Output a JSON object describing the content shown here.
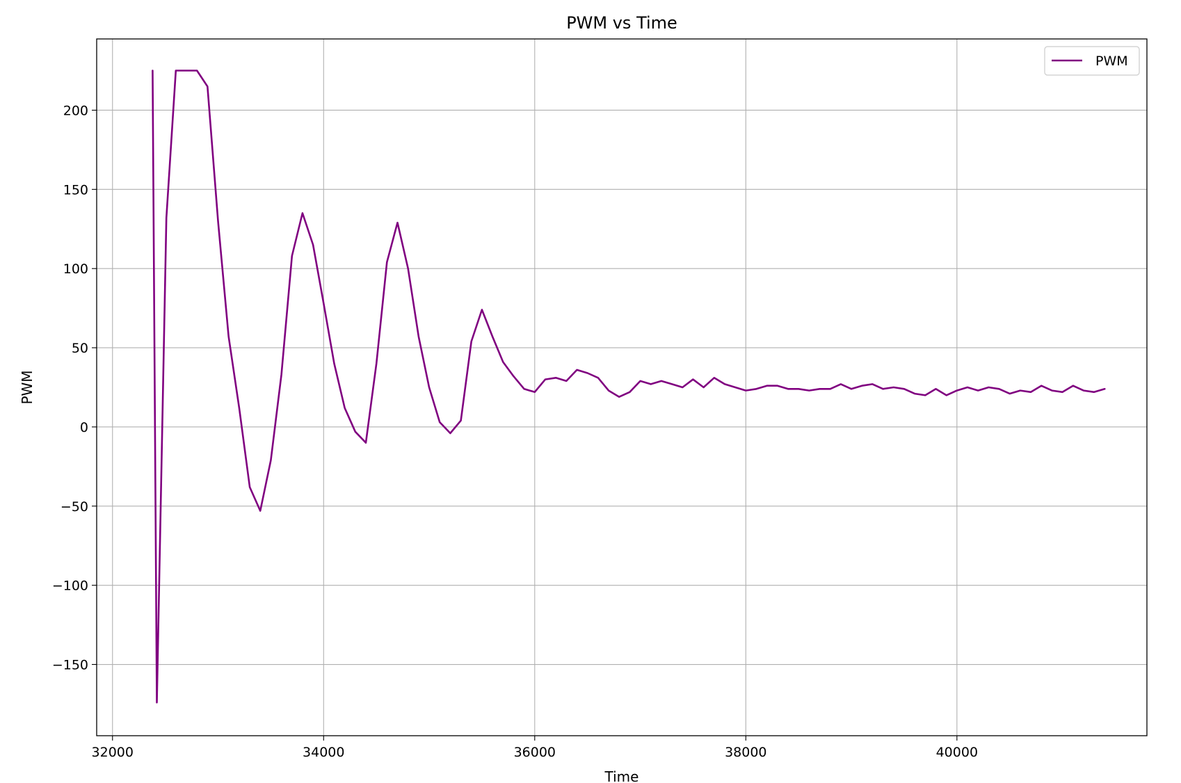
{
  "chart_data": {
    "type": "line",
    "title": "PWM vs Time",
    "xlabel": "Time",
    "ylabel": "PWM",
    "xlim": [
      31850,
      41800
    ],
    "ylim": [
      -195,
      245
    ],
    "grid": true,
    "legend_position": "top-right",
    "x_ticks": [
      {
        "value": 32000,
        "label": "32000"
      },
      {
        "value": 34000,
        "label": "34000"
      },
      {
        "value": 36000,
        "label": "36000"
      },
      {
        "value": 38000,
        "label": "38000"
      },
      {
        "value": 40000,
        "label": "40000"
      }
    ],
    "y_ticks": [
      {
        "value": -150,
        "label": "−150"
      },
      {
        "value": -100,
        "label": "−100"
      },
      {
        "value": -50,
        "label": "−50"
      },
      {
        "value": 0,
        "label": "0"
      },
      {
        "value": 50,
        "label": "50"
      },
      {
        "value": 100,
        "label": "100"
      },
      {
        "value": 150,
        "label": "150"
      },
      {
        "value": 200,
        "label": "200"
      }
    ],
    "series": [
      {
        "name": "PWM",
        "color": "#800080",
        "x": [
          32380,
          32420,
          32510,
          32600,
          32700,
          32800,
          32900,
          33000,
          33100,
          33200,
          33300,
          33400,
          33500,
          33600,
          33700,
          33800,
          33900,
          34000,
          34100,
          34200,
          34300,
          34400,
          34500,
          34600,
          34700,
          34800,
          34900,
          35000,
          35100,
          35200,
          35300,
          35400,
          35500,
          35600,
          35700,
          35800,
          35900,
          36000,
          36100,
          36200,
          36300,
          36400,
          36500,
          36600,
          36700,
          36800,
          36900,
          37000,
          37100,
          37200,
          37300,
          37400,
          37500,
          37600,
          37700,
          37800,
          37900,
          38000,
          38100,
          38200,
          38300,
          38400,
          38500,
          38600,
          38700,
          38800,
          38900,
          39000,
          39100,
          39200,
          39300,
          39400,
          39500,
          39600,
          39700,
          39800,
          39900,
          40000,
          40100,
          40200,
          40300,
          40400,
          40500,
          40600,
          40700,
          40800,
          40900,
          41000,
          41100,
          41200,
          41300,
          41400
        ],
        "values": [
          225,
          -174,
          132,
          225,
          225,
          225,
          215,
          130,
          57,
          12,
          -38,
          -53,
          -21,
          33,
          108,
          135,
          115,
          78,
          40,
          12,
          -3,
          -10,
          40,
          104,
          129,
          100,
          57,
          25,
          3,
          -4,
          4,
          54,
          74,
          57,
          41,
          32,
          24,
          22,
          30,
          31,
          29,
          36,
          34,
          31,
          23,
          19,
          22,
          29,
          27,
          29,
          27,
          25,
          30,
          25,
          31,
          27,
          25,
          23,
          24,
          26,
          26,
          24,
          24,
          23,
          24,
          24,
          27,
          24,
          26,
          27,
          24,
          25,
          24,
          21,
          20,
          24,
          20,
          23,
          25,
          23,
          25,
          24,
          21,
          23,
          22,
          26,
          23,
          22,
          26,
          23,
          22,
          24
        ]
      }
    ]
  }
}
